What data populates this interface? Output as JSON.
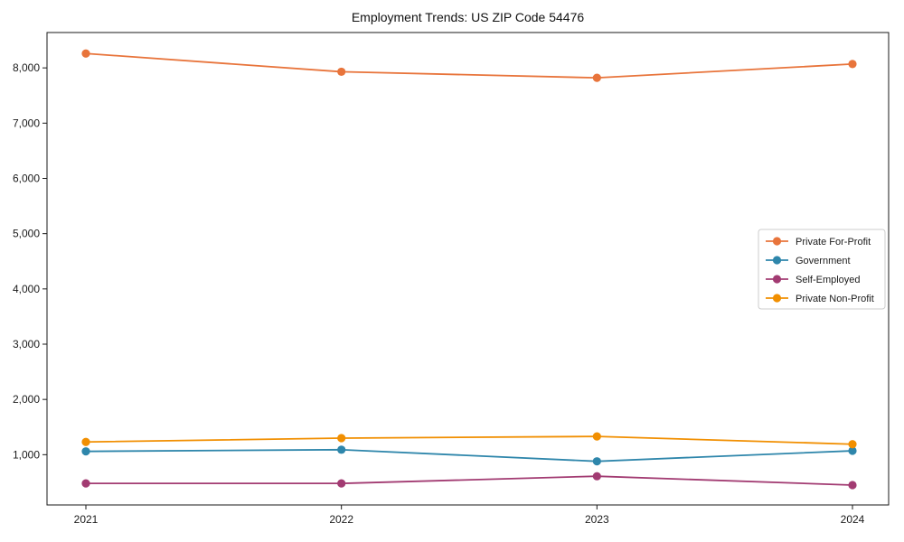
{
  "chart_data": {
    "type": "line",
    "title": "Employment Trends: US ZIP Code 54476",
    "xlabel": "",
    "ylabel": "",
    "categories": [
      "2021",
      "2022",
      "2023",
      "2024"
    ],
    "series": [
      {
        "name": "Private For-Profit",
        "color": "#E8743B",
        "values": [
          8260,
          7930,
          7820,
          8070
        ]
      },
      {
        "name": "Government",
        "color": "#2E86AB",
        "values": [
          1060,
          1090,
          880,
          1070
        ]
      },
      {
        "name": "Self-Employed",
        "color": "#A23B72",
        "values": [
          480,
          480,
          610,
          450
        ]
      },
      {
        "name": "Private Non-Profit",
        "color": "#F18F01",
        "values": [
          1230,
          1300,
          1330,
          1190
        ]
      }
    ],
    "yticks": [
      {
        "value": 1000,
        "label": "1,000"
      },
      {
        "value": 2000,
        "label": "2,000"
      },
      {
        "value": 3000,
        "label": "3,000"
      },
      {
        "value": 4000,
        "label": "4,000"
      },
      {
        "value": 5000,
        "label": "5,000"
      },
      {
        "value": 6000,
        "label": "6,000"
      },
      {
        "value": 7000,
        "label": "7,000"
      },
      {
        "value": 8000,
        "label": "8,000"
      }
    ],
    "ylim": [
      90,
      8640
    ],
    "grid": false,
    "legend_position": "center right",
    "axis_color": "#1a1a1a"
  }
}
